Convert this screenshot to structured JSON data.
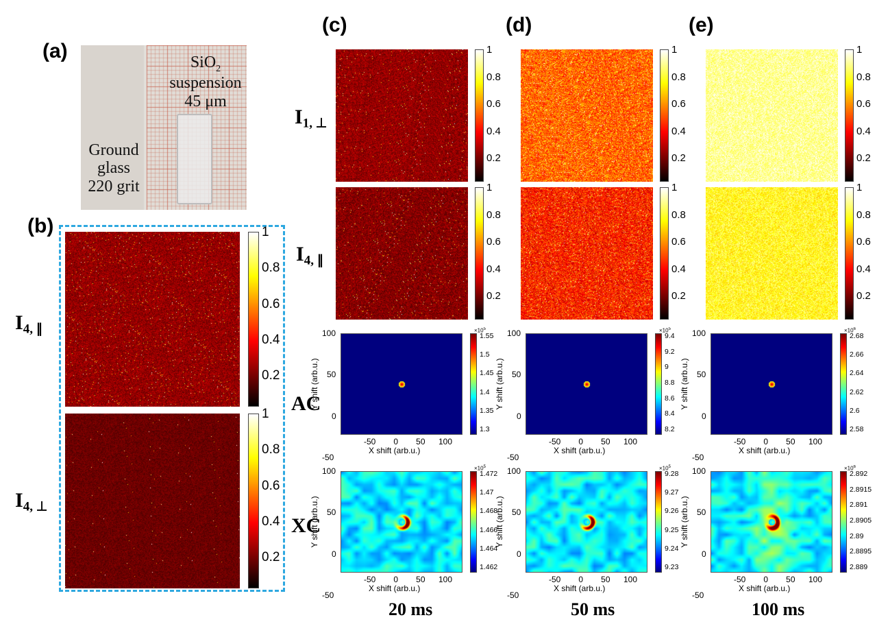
{
  "panels": {
    "a": "(a)",
    "b": "(b)",
    "c": "(c)",
    "d": "(d)",
    "e": "(e)"
  },
  "photo": {
    "sio2_line1": "SiO",
    "sio2_sub": "2",
    "sio2_line2": "suspension",
    "sio2_line3": "45 μm",
    "ground_line1": "Ground",
    "ground_line2": "glass",
    "ground_line3": "220 grit"
  },
  "row_labels": {
    "i1_perp_main": "I",
    "i1_perp_sub": "1, ⊥",
    "i4_par_main": "I",
    "i4_par_sub": "4, ∥",
    "i4_perp_main": "I",
    "i4_perp_sub": "4, ⊥",
    "ac": "AC",
    "xc": "XC"
  },
  "intensity_colorbar_ticks": [
    "1",
    "0.8",
    "0.6",
    "0.4",
    "0.2"
  ],
  "axes": {
    "xlabel": "X shift (arb.u.)",
    "ylabel": "Y shift (arb.u.)",
    "yticks": [
      "100",
      "50",
      "0",
      "-50"
    ],
    "xticks": [
      "-50",
      "0",
      "50",
      "100"
    ]
  },
  "columns": [
    {
      "time": "20 ms",
      "ac_exp_base": "×10",
      "ac_exp_pow": "5",
      "ac_ticks": [
        "1.55",
        "1.5",
        "1.45",
        "1.4",
        "1.35",
        "1.3"
      ],
      "xc_exp_base": "×10",
      "xc_exp_pow": "5",
      "xc_ticks": [
        "1.472",
        "1.47",
        "1.468",
        "1.466",
        "1.464",
        "1.462"
      ]
    },
    {
      "time": "50 ms",
      "ac_exp_base": "×10",
      "ac_exp_pow": "5",
      "ac_ticks": [
        "9.4",
        "9.2",
        "9",
        "8.8",
        "8.6",
        "8.4",
        "8.2"
      ],
      "xc_exp_base": "×10",
      "xc_exp_pow": "5",
      "xc_ticks": [
        "9.28",
        "9.27",
        "9.26",
        "9.25",
        "9.24",
        "9.23"
      ]
    },
    {
      "time": "100 ms",
      "ac_exp_base": "×10",
      "ac_exp_pow": "6",
      "ac_ticks": [
        "2.68",
        "2.66",
        "2.64",
        "2.62",
        "2.6",
        "2.58"
      ],
      "xc_exp_base": "×10",
      "xc_exp_pow": "6",
      "xc_ticks": [
        "2.892",
        "2.8915",
        "2.891",
        "2.8905",
        "2.89",
        "2.8895",
        "2.889"
      ]
    }
  ],
  "colors": {
    "dashed_box": "#2ea8e0",
    "colormap": "hot",
    "correlation_colormap": "jet"
  }
}
